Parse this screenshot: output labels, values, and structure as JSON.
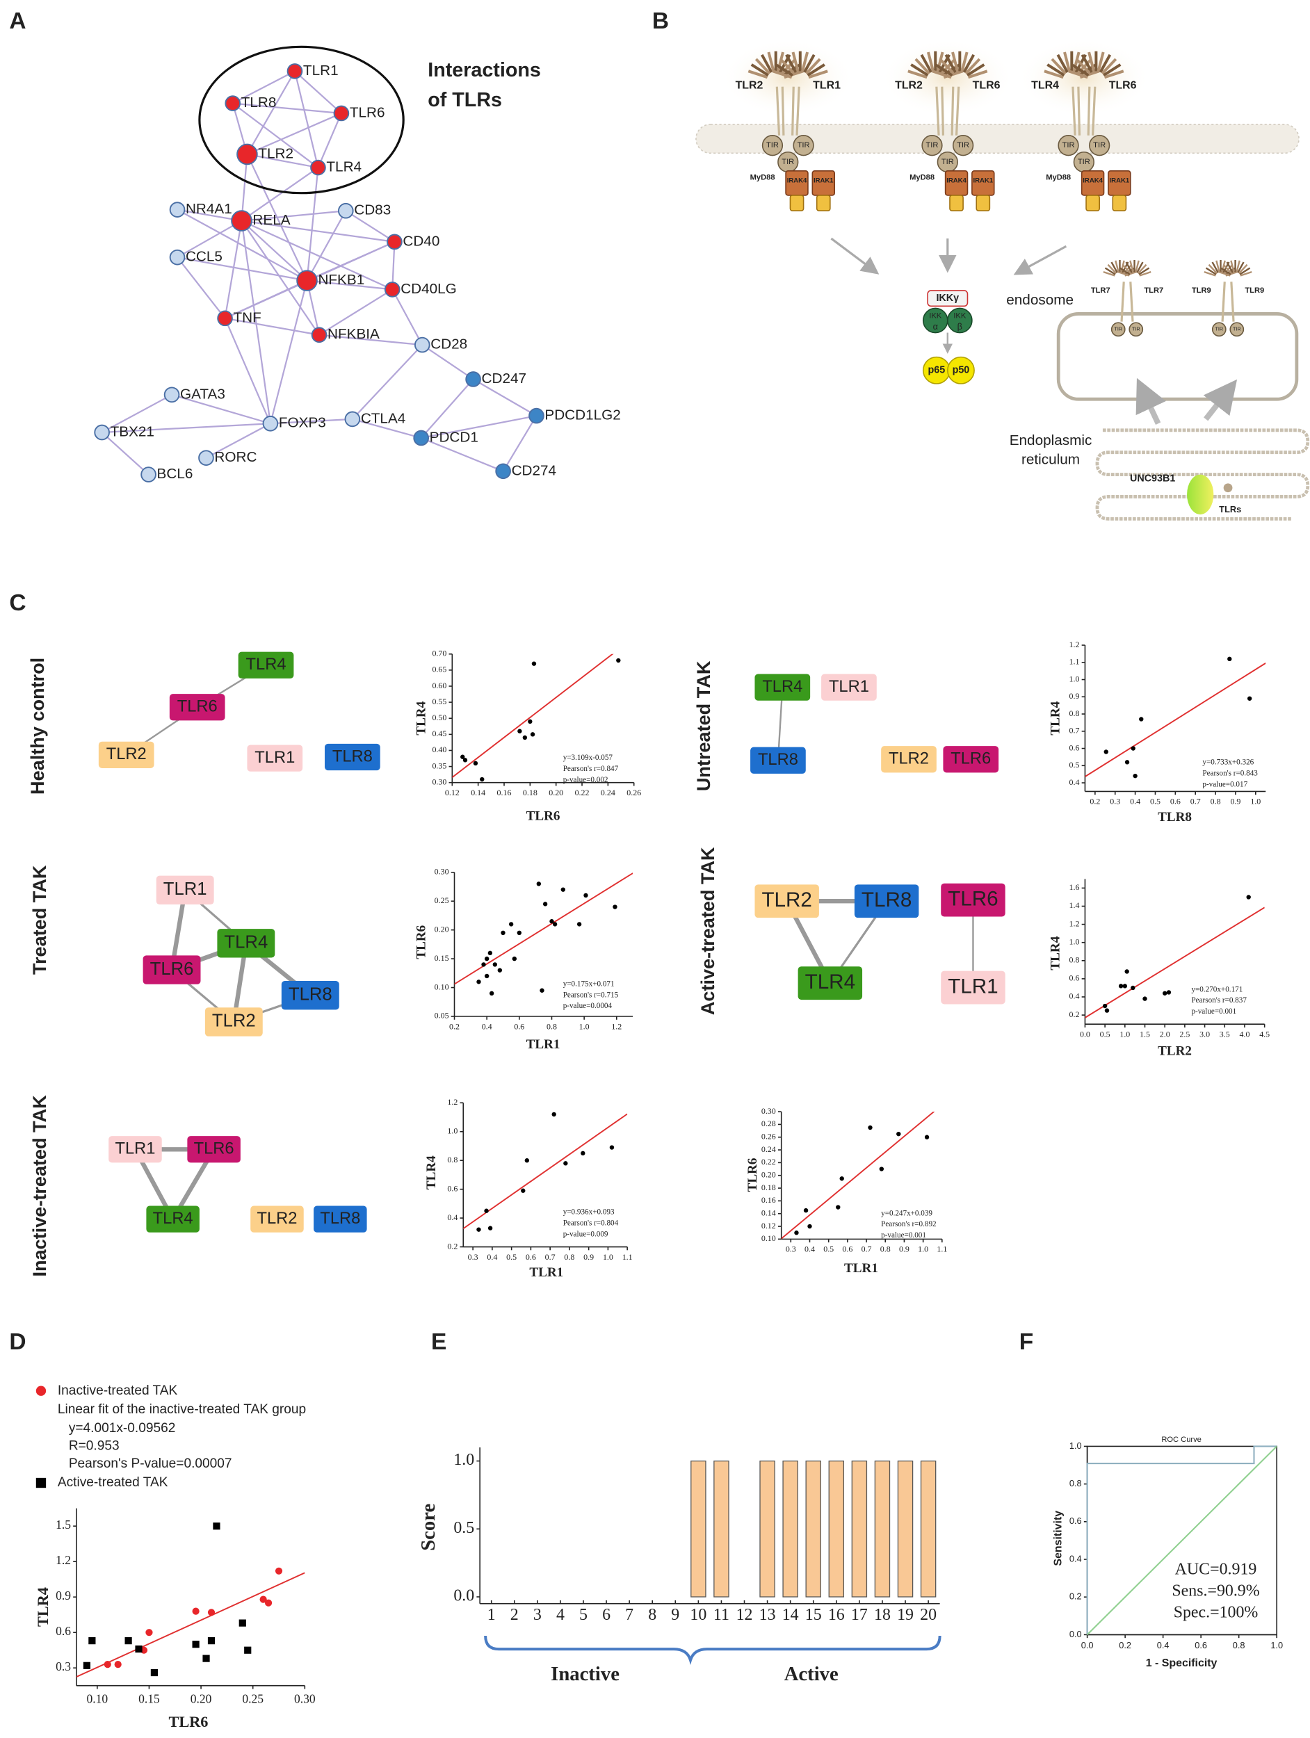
{
  "panel_labels": [
    "A",
    "B",
    "C",
    "D",
    "E",
    "F"
  ],
  "network": {
    "title_lines": [
      "Interactions",
      "of TLRs"
    ],
    "nodes": [
      {
        "label": "TLR1",
        "color": "#e8262a"
      },
      {
        "label": "TLR8",
        "color": "#e8262a"
      },
      {
        "label": "TLR6",
        "color": "#e8262a"
      },
      {
        "label": "TLR2",
        "color": "#e8262a"
      },
      {
        "label": "TLR4",
        "color": "#e8262a"
      },
      {
        "label": "NR4A1",
        "color": "#c6d8ee"
      },
      {
        "label": "RELA",
        "color": "#e8262a"
      },
      {
        "label": "CD83",
        "color": "#c6d8ee"
      },
      {
        "label": "CD40",
        "color": "#e8262a"
      },
      {
        "label": "CCL5",
        "color": "#c6d8ee"
      },
      {
        "label": "NFKB1",
        "color": "#e8262a"
      },
      {
        "label": "CD40LG",
        "color": "#e8262a"
      },
      {
        "label": "TNF",
        "color": "#e8262a"
      },
      {
        "label": "NFKBIA",
        "color": "#e8262a"
      },
      {
        "label": "CD28",
        "color": "#c6d8ee"
      },
      {
        "label": "CD247",
        "color": "#3d85c6"
      },
      {
        "label": "GATA3",
        "color": "#c6d8ee"
      },
      {
        "label": "PDCD1LG2",
        "color": "#3d85c6"
      },
      {
        "label": "TBX21",
        "color": "#c6d8ee"
      },
      {
        "label": "FOXP3",
        "color": "#c6d8ee"
      },
      {
        "label": "CTLA4",
        "color": "#c6d8ee"
      },
      {
        "label": "PDCD1",
        "color": "#3d85c6"
      },
      {
        "label": "RORC",
        "color": "#c6d8ee"
      },
      {
        "label": "BCL6",
        "color": "#c6d8ee"
      },
      {
        "label": "CD274",
        "color": "#3d85c6"
      }
    ]
  },
  "pathway": {
    "complexes": [
      {
        "left": "TLR2",
        "right": "TLR1",
        "tir": [
          "TIR",
          "TIR",
          "TIR"
        ],
        "adaptor": "MyD88",
        "kinases": [
          "IRAK4",
          "IRAK1"
        ]
      },
      {
        "left": "TLR2",
        "right": "TLR6",
        "tir": [
          "TIR",
          "TIR",
          "TIR"
        ],
        "adaptor": "MyD88",
        "kinases": [
          "IRAK4",
          "IRAK1"
        ]
      },
      {
        "left": "TLR4",
        "right": "TLR6",
        "tir": [
          "TIR",
          "TIR",
          "TIR"
        ],
        "adaptor": "MyD88",
        "kinases": [
          "IRAK4",
          "IRAK1"
        ]
      }
    ],
    "ikk": {
      "gamma": "IKKγ",
      "left": "IKK",
      "right": "IKK",
      "alpha": "α",
      "beta": "β"
    },
    "nfkb": [
      "p65",
      "p50"
    ],
    "endosome": "endosome",
    "endosomal": [
      {
        "left": "TLR7",
        "right": "TLR7",
        "tir": [
          "TIR",
          "TIR"
        ]
      },
      {
        "left": "TLR9",
        "right": "TLR9",
        "tir": [
          "TIR",
          "TIR"
        ]
      }
    ],
    "er": [
      "Endoplasmic",
      "reticulum"
    ],
    "unc": "UNC93B1",
    "tlrs": "TLRs"
  },
  "groups": [
    {
      "label": "Healthy control",
      "nodes": [
        {
          "label": "TLR4",
          "color": "#3a9a1c",
          "text_color": "#ffffff"
        },
        {
          "label": "TLR6",
          "color": "#c8176f",
          "text_color": "#ffffff"
        },
        {
          "label": "TLR2",
          "color": "#fcd08a",
          "text_color": "#222222"
        },
        {
          "label": "TLR1",
          "color": "#fbd0d2",
          "text_color": "#222222"
        },
        {
          "label": "TLR8",
          "color": "#1e6fce",
          "text_color": "#ffffff"
        }
      ]
    },
    {
      "label": "Untreated TAK",
      "nodes": [
        {
          "label": "TLR4",
          "color": "#3a9a1c",
          "text_color": "#ffffff"
        },
        {
          "label": "TLR1",
          "color": "#fbd0d2",
          "text_color": "#222222"
        },
        {
          "label": "TLR8",
          "color": "#1e6fce",
          "text_color": "#ffffff"
        },
        {
          "label": "TLR2",
          "color": "#fcd08a",
          "text_color": "#222222"
        },
        {
          "label": "TLR6",
          "color": "#c8176f",
          "text_color": "#ffffff"
        }
      ]
    },
    {
      "label": "Treated TAK",
      "nodes": [
        {
          "label": "TLR1",
          "color": "#fbd0d2",
          "text_color": "#222222"
        },
        {
          "label": "TLR4",
          "color": "#3a9a1c",
          "text_color": "#ffffff"
        },
        {
          "label": "TLR6",
          "color": "#c8176f",
          "text_color": "#ffffff"
        },
        {
          "label": "TLR8",
          "color": "#1e6fce",
          "text_color": "#ffffff"
        },
        {
          "label": "TLR2",
          "color": "#fcd08a",
          "text_color": "#222222"
        }
      ]
    },
    {
      "label": "Active-treated TAK",
      "nodes": [
        {
          "label": "TLR2",
          "color": "#fcd08a",
          "text_color": "#222222"
        },
        {
          "label": "TLR8",
          "color": "#1e6fce",
          "text_color": "#ffffff"
        },
        {
          "label": "TLR4",
          "color": "#3a9a1c",
          "text_color": "#ffffff"
        },
        {
          "label": "TLR6",
          "color": "#c8176f",
          "text_color": "#ffffff"
        },
        {
          "label": "TLR1",
          "color": "#fbd0d2",
          "text_color": "#222222"
        }
      ]
    },
    {
      "label": "Inactive-treated TAK",
      "nodes": [
        {
          "label": "TLR1",
          "color": "#fbd0d2",
          "text_color": "#222222"
        },
        {
          "label": "TLR6",
          "color": "#c8176f",
          "text_color": "#ffffff"
        },
        {
          "label": "TLR4",
          "color": "#3a9a1c",
          "text_color": "#ffffff"
        },
        {
          "label": "TLR2",
          "color": "#fcd08a",
          "text_color": "#222222"
        },
        {
          "label": "TLR8",
          "color": "#1e6fce",
          "text_color": "#ffffff"
        }
      ]
    }
  ],
  "chart_data": [
    {
      "type": "scatter",
      "x_label": "TLR6",
      "y_label": "TLR4",
      "color": "#000000",
      "marker": "circle",
      "x": [
        0.128,
        0.13,
        0.138,
        0.143,
        0.172,
        0.176,
        0.18,
        0.182,
        0.183,
        0.248
      ],
      "values": [
        0.38,
        0.37,
        0.36,
        0.31,
        0.46,
        0.44,
        0.49,
        0.45,
        0.67,
        0.68
      ],
      "fit": {
        "slope": 3.109,
        "intercept": -0.057,
        "color": "#e03030"
      },
      "annotations": [
        "y=3.109x-0.057",
        "Pearson's r=0.847",
        "p-value=0.002"
      ],
      "xlim": [
        0.12,
        0.26
      ],
      "xticks": [
        0.12,
        0.14,
        0.16,
        0.18,
        {
          "value": 0.2,
          "label": "0.20"
        },
        0.22,
        0.24,
        0.26
      ],
      "ylim": [
        0.3,
        0.7
      ],
      "yticks": [
        {
          "value": 0.3,
          "label": "0.30"
        },
        0.35,
        {
          "value": 0.4,
          "label": "0.40"
        },
        0.45,
        {
          "value": 0.5,
          "label": "0.50"
        },
        0.55,
        {
          "value": 0.6,
          "label": "0.60"
        },
        0.65,
        {
          "value": 0.7,
          "label": "0.70"
        }
      ]
    },
    {
      "type": "scatter",
      "x_label": "TLR8",
      "y_label": "TLR4",
      "color": "#000000",
      "marker": "circle",
      "x": [
        0.255,
        0.36,
        0.39,
        0.4,
        0.43,
        0.87,
        0.97
      ],
      "values": [
        0.58,
        0.52,
        0.6,
        0.44,
        0.77,
        1.12,
        0.89
      ],
      "fit": {
        "slope": 0.733,
        "intercept": 0.326,
        "color": "#e03030"
      },
      "annotations": [
        "y=0.733x+0.326",
        "Pearson's r=0.843",
        "p-value=0.017"
      ],
      "xlim": [
        0.15,
        1.05
      ],
      "xticks": [
        0.2,
        0.3,
        0.4,
        0.5,
        0.6,
        0.7,
        0.8,
        0.9,
        {
          "value": 1,
          "label": "1.0"
        }
      ],
      "ylim": [
        0.35,
        1.2
      ],
      "yticks": [
        0.4,
        0.5,
        0.6,
        0.7,
        0.8,
        0.9,
        {
          "value": 1,
          "label": "1.0"
        },
        1.1,
        1.2
      ]
    },
    {
      "type": "scatter",
      "x_label": "TLR1",
      "y_label": "TLR6",
      "color": "#000000",
      "marker": "circle",
      "x": [
        0.35,
        0.38,
        0.4,
        0.4,
        0.42,
        0.43,
        0.45,
        0.48,
        0.5,
        0.55,
        0.57,
        0.6,
        0.72,
        0.74,
        0.76,
        0.8,
        0.82,
        0.87,
        0.97,
        1.01,
        1.19
      ],
      "values": [
        0.11,
        0.14,
        0.12,
        0.15,
        0.16,
        0.09,
        0.14,
        0.13,
        0.195,
        0.21,
        0.15,
        0.195,
        0.28,
        0.095,
        0.245,
        0.215,
        0.21,
        0.27,
        0.21,
        0.26,
        0.24
      ],
      "fit": {
        "slope": 0.175,
        "intercept": 0.071,
        "color": "#e03030"
      },
      "annotations": [
        "y=0.175x+0.071",
        "Pearson's r=0.715",
        "p-value=0.0004"
      ],
      "xlim": [
        0.2,
        1.3
      ],
      "xticks": [
        0.2,
        0.4,
        0.6,
        0.8,
        {
          "value": 1,
          "label": "1.0"
        },
        1.2
      ],
      "ylim": [
        0.05,
        0.3
      ],
      "yticks": [
        0.05,
        {
          "value": 0.1,
          "label": "0.10"
        },
        0.15,
        {
          "value": 0.2,
          "label": "0.20"
        },
        0.25,
        {
          "value": 0.3,
          "label": "0.30"
        }
      ]
    },
    {
      "type": "scatter",
      "x_label": "TLR2",
      "y_label": "TLR4",
      "color": "#000000",
      "marker": "circle",
      "x": [
        0.5,
        0.55,
        0.9,
        1.0,
        1.05,
        1.2,
        1.5,
        2.0,
        2.1,
        4.1
      ],
      "values": [
        0.3,
        0.25,
        0.52,
        0.52,
        0.68,
        0.5,
        0.38,
        0.44,
        0.45,
        1.5
      ],
      "fit": {
        "slope": 0.27,
        "intercept": 0.171,
        "color": "#e03030"
      },
      "annotations": [
        "y=0.270x+0.171",
        "Pearson's r=0.837",
        "p-value=0.001"
      ],
      "xlim": [
        0,
        4.5
      ],
      "xticks": [
        {
          "value": 0,
          "label": "0.0"
        },
        0.5,
        {
          "value": 1,
          "label": "1.0"
        },
        1.5,
        {
          "value": 2,
          "label": "2.0"
        },
        2.5,
        {
          "value": 3,
          "label": "3.0"
        },
        3.5,
        {
          "value": 4,
          "label": "4.0"
        },
        4.5
      ],
      "ylim": [
        0.1,
        1.7
      ],
      "yticks": [
        0.2,
        0.4,
        0.6,
        0.8,
        {
          "value": 1,
          "label": "1.0"
        },
        1.2,
        1.4,
        1.6
      ]
    },
    {
      "type": "scatter",
      "x_label": "TLR1",
      "y_label": "TLR4",
      "color": "#000000",
      "marker": "circle",
      "x": [
        0.33,
        0.37,
        0.39,
        0.56,
        0.58,
        0.72,
        0.78,
        0.87,
        1.02
      ],
      "values": [
        0.32,
        0.45,
        0.33,
        0.59,
        0.8,
        1.12,
        0.78,
        0.85,
        0.89
      ],
      "fit": {
        "slope": 0.936,
        "intercept": 0.093,
        "color": "#e03030"
      },
      "annotations": [
        "y=0.936x+0.093",
        "Pearson's r=0.804",
        "p-value=0.009"
      ],
      "xlim": [
        0.25,
        1.1
      ],
      "xticks": [
        0.3,
        0.4,
        0.5,
        0.6,
        0.7,
        0.8,
        0.9,
        {
          "value": 1,
          "label": "1.0"
        },
        1.1
      ],
      "ylim": [
        0.2,
        1.2
      ],
      "yticks": [
        0.2,
        0.4,
        0.6,
        0.8,
        {
          "value": 1,
          "label": "1.0"
        },
        1.2
      ]
    },
    {
      "type": "scatter",
      "x_label": "TLR1",
      "y_label": "TLR6",
      "color": "#000000",
      "marker": "circle",
      "x": [
        0.33,
        0.38,
        0.4,
        0.55,
        0.57,
        0.72,
        0.78,
        0.87,
        1.02
      ],
      "values": [
        0.11,
        0.145,
        0.12,
        0.15,
        0.195,
        0.275,
        0.21,
        0.265,
        0.26
      ],
      "fit": {
        "slope": 0.247,
        "intercept": 0.039,
        "color": "#e03030"
      },
      "annotations": [
        "y=0.247x+0.039",
        "Pearson's r=0.892",
        "p-value=0.001"
      ],
      "xlim": [
        0.25,
        1.1
      ],
      "xticks": [
        0.3,
        0.4,
        0.5,
        0.6,
        0.7,
        0.8,
        0.9,
        {
          "value": 1,
          "label": "1.0"
        },
        1.1
      ],
      "ylim": [
        0.1,
        0.3
      ],
      "yticks": [
        {
          "value": 0.1,
          "label": "0.10"
        },
        0.12,
        0.14,
        0.16,
        0.18,
        {
          "value": 0.2,
          "label": "0.20"
        },
        0.22,
        0.24,
        0.26,
        0.28,
        {
          "value": 0.3,
          "label": "0.30"
        }
      ]
    },
    {
      "type": "scatter",
      "x_label": "TLR6",
      "y_label": "TLR4",
      "series": [
        {
          "name": "Inactive-treated TAK",
          "color": "#e8262a",
          "marker": "circle",
          "x": [
            0.11,
            0.12,
            0.145,
            0.15,
            0.195,
            0.21,
            0.26,
            0.265,
            0.275
          ],
          "values": [
            0.33,
            0.33,
            0.45,
            0.6,
            0.78,
            0.77,
            0.88,
            0.85,
            1.12
          ]
        },
        {
          "name": "Active-treated TAK",
          "color": "#000000",
          "marker": "square",
          "x": [
            0.09,
            0.095,
            0.13,
            0.14,
            0.155,
            0.195,
            0.205,
            0.21,
            0.215,
            0.24,
            0.245
          ],
          "values": [
            0.32,
            0.53,
            0.53,
            0.46,
            0.26,
            0.5,
            0.38,
            0.53,
            1.5,
            0.68,
            0.45
          ]
        }
      ],
      "fit": {
        "name": "Linear fit of the inactive-treated TAK group",
        "slope": 4.001,
        "intercept": -0.09562,
        "color": "#e03030"
      },
      "annotations": [
        "y=4.001x-0.09562",
        "R=0.953",
        "Pearson's P-value=0.00007"
      ],
      "xlim": [
        0.08,
        0.3
      ],
      "xticks": [
        {
          "value": 0.1,
          "label": "0.10"
        },
        0.15,
        {
          "value": 0.2,
          "label": "0.20"
        },
        0.25,
        {
          "value": 0.3,
          "label": "0.30"
        }
      ],
      "ylim": [
        0.15,
        1.65
      ],
      "yticks": [
        0.3,
        0.6,
        0.9,
        1.2,
        1.5
      ]
    },
    {
      "type": "bar",
      "y_label": "Score",
      "color": "#f9c895",
      "group_labels": [
        "Inactive",
        "Active"
      ],
      "categories": [
        "1",
        "2",
        "3",
        "4",
        "5",
        "6",
        "7",
        "8",
        "9",
        "10",
        "11",
        "12",
        "13",
        "14",
        "15",
        "16",
        "17",
        "18",
        "19",
        "20"
      ],
      "values": [
        0,
        0,
        0,
        0,
        0,
        0,
        0,
        0,
        0,
        1,
        1,
        0,
        1,
        1,
        1,
        1,
        1,
        1,
        1,
        1
      ],
      "ylim": [
        -0.05,
        1.1
      ],
      "yticks": [
        {
          "value": 0,
          "label": "0.0"
        },
        0.5,
        {
          "value": 1,
          "label": "1.0"
        }
      ]
    },
    {
      "type": "line",
      "title": "ROC Curve",
      "x_label": "1 - Specificity",
      "y_label": "Sensitivity",
      "series": [
        {
          "color": "#8fb0c0",
          "x": [
            0,
            0,
            0.88,
            0.88,
            1
          ],
          "values": [
            0,
            0.909,
            0.909,
            1,
            1
          ]
        },
        {
          "color": "#90d090",
          "x": [
            0,
            1
          ],
          "values": [
            0,
            1
          ]
        }
      ],
      "annotations": [
        "AUC=0.919",
        "Sens.=90.9%",
        "Spec.=100%"
      ],
      "annotation_color": "#2a4a80",
      "xlim": [
        0,
        1
      ],
      "xticks": [
        {
          "value": 0,
          "label": "0.0"
        },
        0.2,
        0.4,
        0.6,
        0.8,
        {
          "value": 1,
          "label": "1.0"
        }
      ],
      "ylim": [
        0,
        1
      ],
      "yticks": [
        {
          "value": 0,
          "label": "0.0"
        },
        0.2,
        0.4,
        0.6,
        0.8,
        {
          "value": 1,
          "label": "1.0"
        }
      ]
    }
  ]
}
